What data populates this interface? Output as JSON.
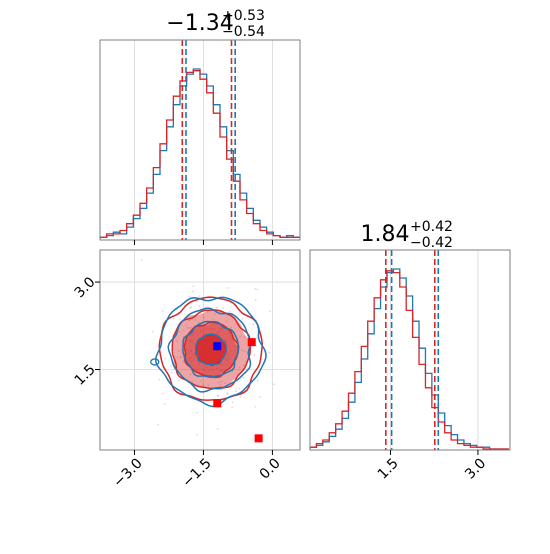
{
  "chart_data": {
    "type": "corner-plot",
    "colors": {
      "series_a": "#1f77b4",
      "series_b": "#d62728",
      "marker_blue": "#0000ff",
      "marker_red": "#ff0000"
    },
    "grid": true,
    "param1": {
      "title": {
        "main": "−1.34",
        "sup": "+0.53",
        "sub": "−0.54"
      },
      "range": [
        -3.75,
        0.6
      ],
      "ticks": [
        -3.0,
        -1.5,
        0.0
      ],
      "tick_labels": [
        "−3.0",
        "−1.5",
        "0.0"
      ],
      "quantile_lines": {
        "series_a": [
          -1.88,
          -1.34,
          -0.81
        ],
        "series_b": [
          -1.96,
          -1.34,
          -0.89
        ]
      }
    },
    "param2": {
      "title": {
        "main": "1.84",
        "sup": "+0.42",
        "sub": "−0.42"
      },
      "range": [
        0.12,
        3.55
      ],
      "ticks": [
        1.5,
        3.0
      ],
      "tick_labels": [
        "1.5",
        "3.0"
      ],
      "quantile_lines": {
        "series_a": [
          1.52,
          1.84,
          2.32
        ],
        "series_b": [
          1.42,
          1.84,
          2.26
        ]
      }
    },
    "hist1": {
      "x_edges_start": -3.75,
      "bin_width": 0.145,
      "series_a": [
        0.01,
        0.02,
        0.04,
        0.03,
        0.07,
        0.12,
        0.18,
        0.27,
        0.38,
        0.52,
        0.66,
        0.79,
        0.9,
        0.97,
        1.0,
        0.97,
        0.9,
        0.79,
        0.66,
        0.52,
        0.38,
        0.27,
        0.18,
        0.11,
        0.07,
        0.04,
        0.02,
        0.01,
        0.02,
        0.01
      ],
      "series_b": [
        0.01,
        0.03,
        0.03,
        0.05,
        0.09,
        0.14,
        0.21,
        0.3,
        0.42,
        0.56,
        0.7,
        0.84,
        0.93,
        0.98,
        0.99,
        0.94,
        0.86,
        0.74,
        0.6,
        0.47,
        0.34,
        0.23,
        0.15,
        0.09,
        0.05,
        0.03,
        0.02,
        0.01,
        0.01,
        0.01
      ]
    },
    "hist2": {
      "x_edges_start": 0.12,
      "bin_width": 0.11,
      "series_a": [
        0.01,
        0.02,
        0.04,
        0.07,
        0.11,
        0.17,
        0.26,
        0.37,
        0.5,
        0.64,
        0.78,
        0.9,
        0.98,
        1.0,
        0.95,
        0.85,
        0.71,
        0.56,
        0.42,
        0.3,
        0.2,
        0.13,
        0.08,
        0.05,
        0.03,
        0.02,
        0.01,
        0.01,
        0.0,
        0.0,
        0.0
      ],
      "series_b": [
        0.01,
        0.03,
        0.05,
        0.09,
        0.14,
        0.21,
        0.31,
        0.43,
        0.57,
        0.71,
        0.84,
        0.94,
        0.99,
        0.98,
        0.9,
        0.77,
        0.62,
        0.47,
        0.34,
        0.23,
        0.15,
        0.09,
        0.05,
        0.03,
        0.02,
        0.01,
        0.01,
        0.0,
        0.0,
        0.0,
        0.0
      ]
    },
    "contours2d": {
      "center": [
        -1.34,
        1.84
      ],
      "sigma": [
        0.53,
        0.42
      ],
      "levels_sigma": [
        0.6,
        1.1,
        1.6,
        2.1
      ],
      "fill_alpha": [
        0.85,
        0.55,
        0.3
      ],
      "markers": [
        {
          "color": "#0000ff",
          "x": -1.2,
          "y": 1.9
        },
        {
          "color": "#ff0000",
          "x": -0.45,
          "y": 1.97
        },
        {
          "color": "#ff0000",
          "x": -1.2,
          "y": 0.92
        },
        {
          "color": "#ff0000",
          "x": -0.3,
          "y": 0.32
        }
      ]
    }
  }
}
